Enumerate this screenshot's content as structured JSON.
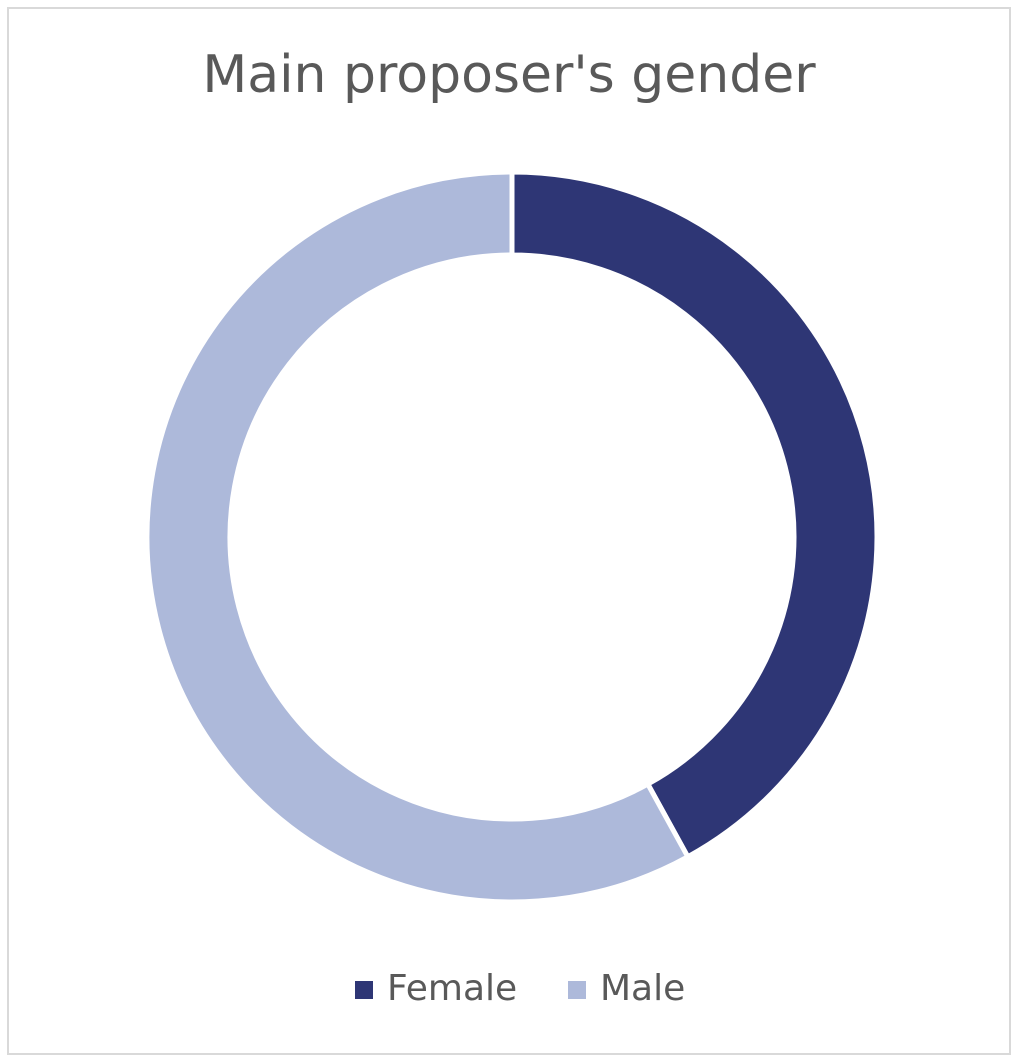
{
  "chart_data": {
    "type": "donut",
    "title": "Main proposer's gender",
    "categories": [
      "Female",
      "Male"
    ],
    "values": [
      42,
      58
    ],
    "colors": [
      "#2e3675",
      "#adb9da"
    ],
    "legend": "bottom"
  }
}
